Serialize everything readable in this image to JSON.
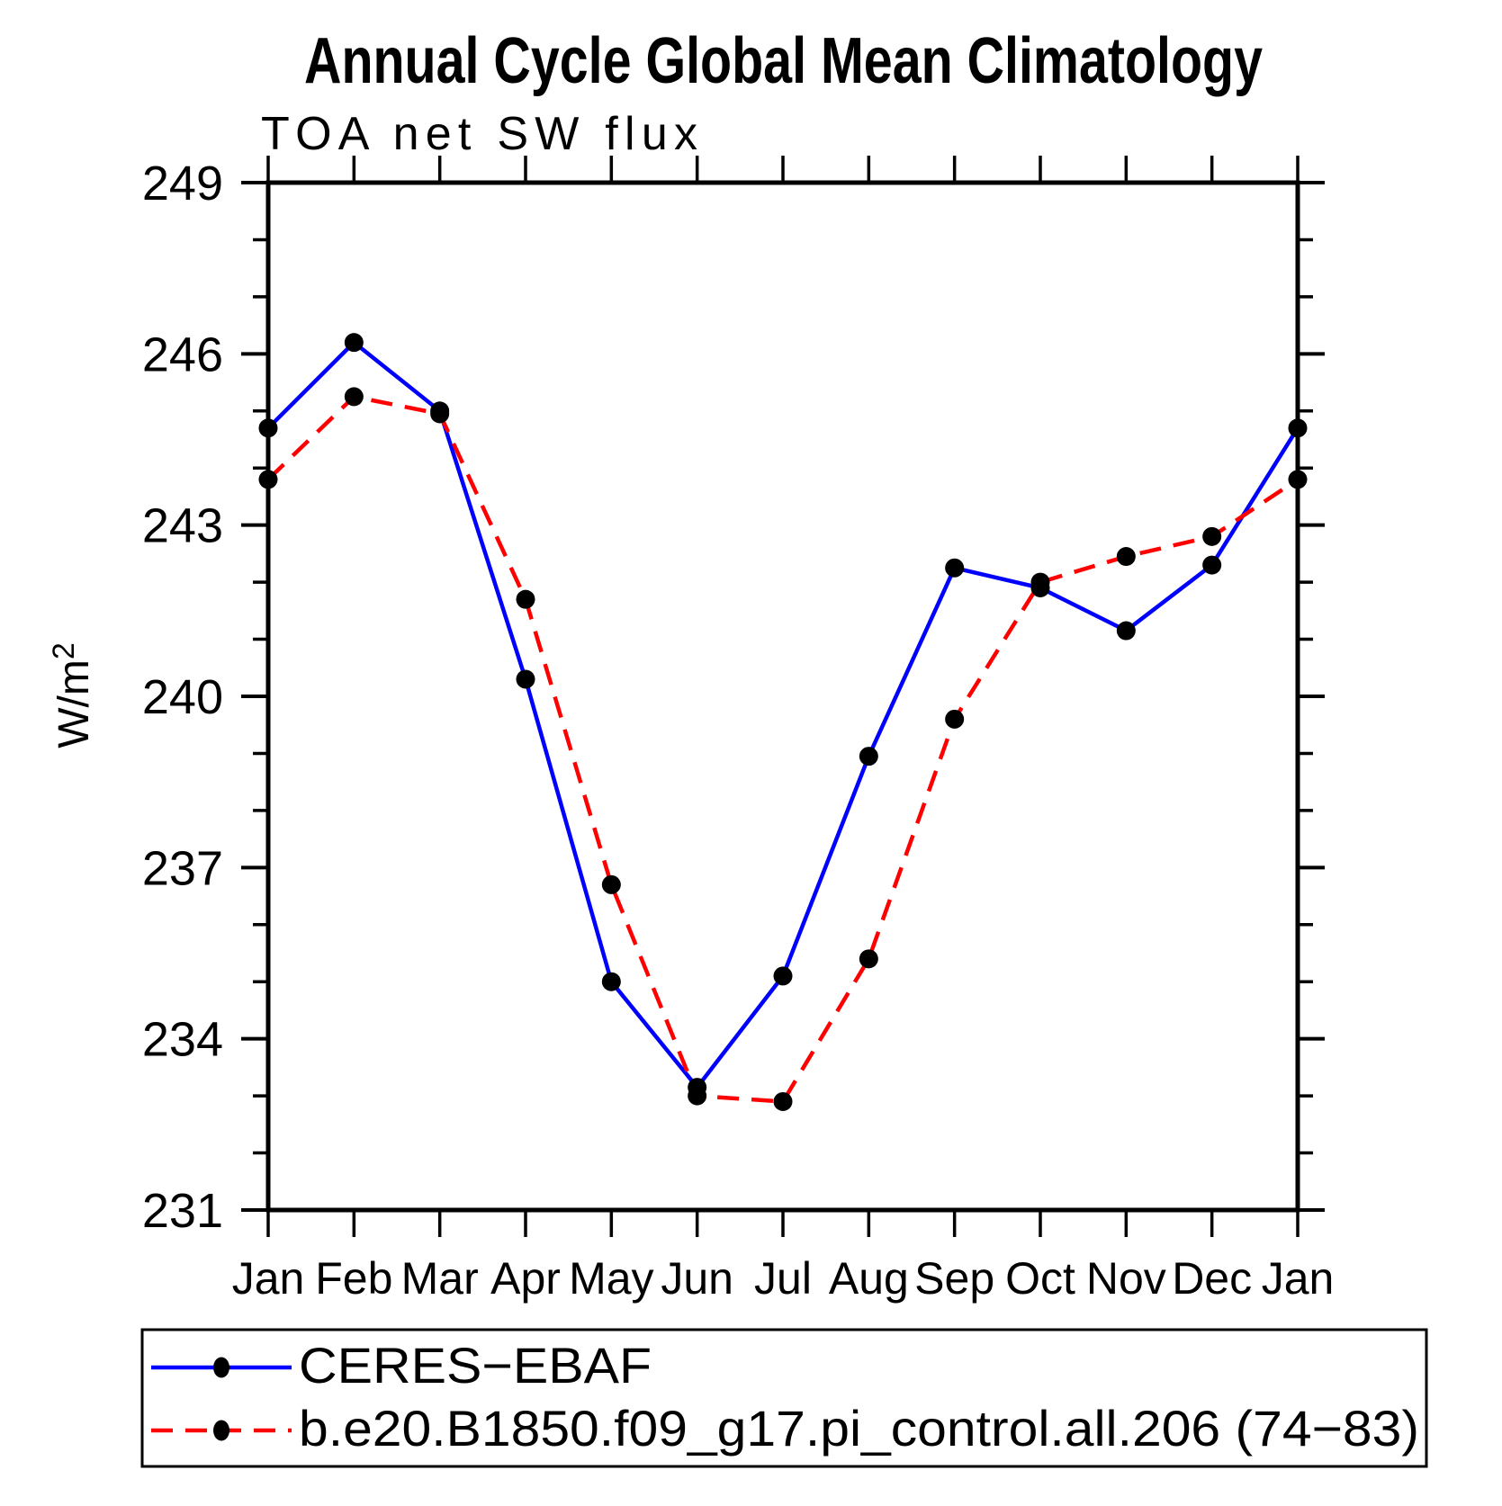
{
  "title": "Annual Cycle Global Mean Climatology",
  "subtitle": "TOA net SW flux",
  "ylabel_parts": {
    "base": "W/m",
    "exp": "2"
  },
  "colors": {
    "obs_line": "#0000ff",
    "model_line": "#ff0000",
    "marker": "#000000",
    "axis": "#000000"
  },
  "legend": {
    "entries": [
      {
        "label": "CERES−EBAF",
        "line_style": "solid",
        "color": "#0000ff",
        "marker": "filled-circle"
      },
      {
        "label": "b.e20.B1850.f09_g17.pi_control.all.206 (74−83)",
        "line_style": "dashed",
        "color": "#ff0000",
        "marker": "filled-circle"
      }
    ]
  },
  "chart_data": {
    "type": "line",
    "title": "Annual Cycle Global Mean Climatology",
    "subtitle": "TOA net SW flux",
    "ylabel": "W/m²",
    "xlabel": "",
    "categories": [
      "Jan",
      "Feb",
      "Mar",
      "Apr",
      "May",
      "Jun",
      "Jul",
      "Aug",
      "Sep",
      "Oct",
      "Nov",
      "Dec",
      "Jan"
    ],
    "series": [
      {
        "name": "CERES−EBAF",
        "color": "#0000ff",
        "line_style": "solid",
        "marker": "filled-circle",
        "values": [
          244.7,
          246.2,
          245.0,
          240.3,
          235.0,
          233.15,
          235.1,
          238.95,
          242.25,
          241.9,
          241.15,
          242.3,
          244.7
        ]
      },
      {
        "name": "b.e20.B1850.f09_g17.pi_control.all.206 (74−83)",
        "color": "#ff0000",
        "line_style": "dashed",
        "marker": "filled-circle",
        "values": [
          243.8,
          245.25,
          244.95,
          241.7,
          236.7,
          233.0,
          232.9,
          235.4,
          239.6,
          242.0,
          242.45,
          242.8,
          243.8
        ]
      }
    ],
    "ylim": [
      231,
      249
    ],
    "y_major_ticks": [
      231,
      234,
      237,
      240,
      243,
      246,
      249
    ],
    "y_minor_tick_step": 1,
    "grid": false,
    "legend_position": "below-left"
  }
}
